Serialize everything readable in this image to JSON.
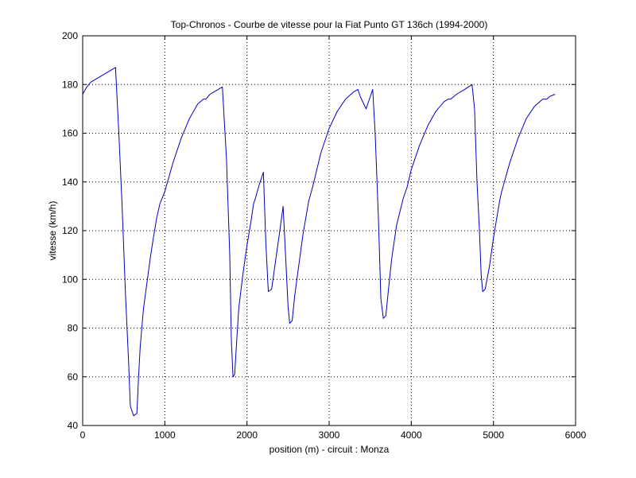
{
  "chart_data": {
    "type": "line",
    "title": "Top-Chronos - Courbe de vitesse pour la Fiat Punto GT 136ch (1994-2000)",
    "xlabel": "position (m) - circuit : Monza",
    "ylabel": "vitesse (km/h)",
    "xlim": [
      0,
      6000
    ],
    "ylim": [
      40,
      200
    ],
    "xticks": [
      0,
      1000,
      2000,
      3000,
      4000,
      5000,
      6000
    ],
    "yticks": [
      40,
      60,
      80,
      100,
      120,
      140,
      160,
      180,
      200
    ],
    "xtick_labels": [
      "0",
      "1000",
      "2000",
      "3000",
      "4000",
      "5000",
      "6000"
    ],
    "ytick_labels": [
      "40",
      "60",
      "80",
      "100",
      "120",
      "140",
      "160",
      "180",
      "200"
    ],
    "grid": true,
    "line_color": "#0000bf",
    "series": [
      {
        "x": [
          0,
          50,
          100,
          200,
          300,
          400,
          440,
          480,
          520,
          560,
          580,
          620,
          660,
          680,
          700,
          740,
          780,
          820,
          860,
          900,
          940,
          1000,
          1100,
          1200,
          1300,
          1400,
          1470,
          1500,
          1550,
          1600,
          1650,
          1700,
          1750,
          1790,
          1810,
          1830,
          1850,
          1870,
          1900,
          1950,
          2000,
          2050,
          2080,
          2100,
          2150,
          2200,
          2230,
          2260,
          2300,
          2350,
          2400,
          2440,
          2470,
          2500,
          2520,
          2550,
          2580,
          2620,
          2680,
          2750,
          2800,
          2850,
          2900,
          3000,
          3100,
          3200,
          3300,
          3350,
          3380,
          3450,
          3500,
          3530,
          3560,
          3600,
          3630,
          3660,
          3690,
          3720,
          3760,
          3820,
          3900,
          3950,
          4000,
          4100,
          4200,
          4300,
          4400,
          4450,
          4480,
          4550,
          4650,
          4740,
          4770,
          4800,
          4830,
          4850,
          4870,
          4900,
          4950,
          5000,
          5050,
          5080,
          5100,
          5200,
          5300,
          5400,
          5500,
          5600,
          5650,
          5680,
          5750
        ],
        "y": [
          176,
          179,
          181,
          183,
          185,
          187,
          160,
          130,
          95,
          65,
          48,
          44,
          45,
          60,
          72,
          88,
          98,
          108,
          117,
          125,
          131,
          136,
          148,
          158,
          166,
          172,
          174,
          174,
          176,
          177,
          178,
          179,
          150,
          110,
          75,
          60,
          61,
          72,
          88,
          102,
          114,
          124,
          131,
          133,
          139,
          144,
          115,
          95,
          96,
          108,
          120,
          130,
          110,
          89,
          82,
          83,
          93,
          103,
          118,
          132,
          138,
          145,
          152,
          162,
          169,
          174,
          177,
          178,
          175,
          170,
          175,
          178,
          160,
          125,
          92,
          84,
          85,
          95,
          108,
          122,
          133,
          138,
          145,
          155,
          163,
          169,
          173,
          174,
          174,
          176,
          178,
          180,
          170,
          140,
          120,
          102,
          95,
          96,
          105,
          117,
          127,
          133,
          136,
          148,
          158,
          166,
          171,
          174,
          174,
          175,
          176
        ]
      }
    ]
  }
}
